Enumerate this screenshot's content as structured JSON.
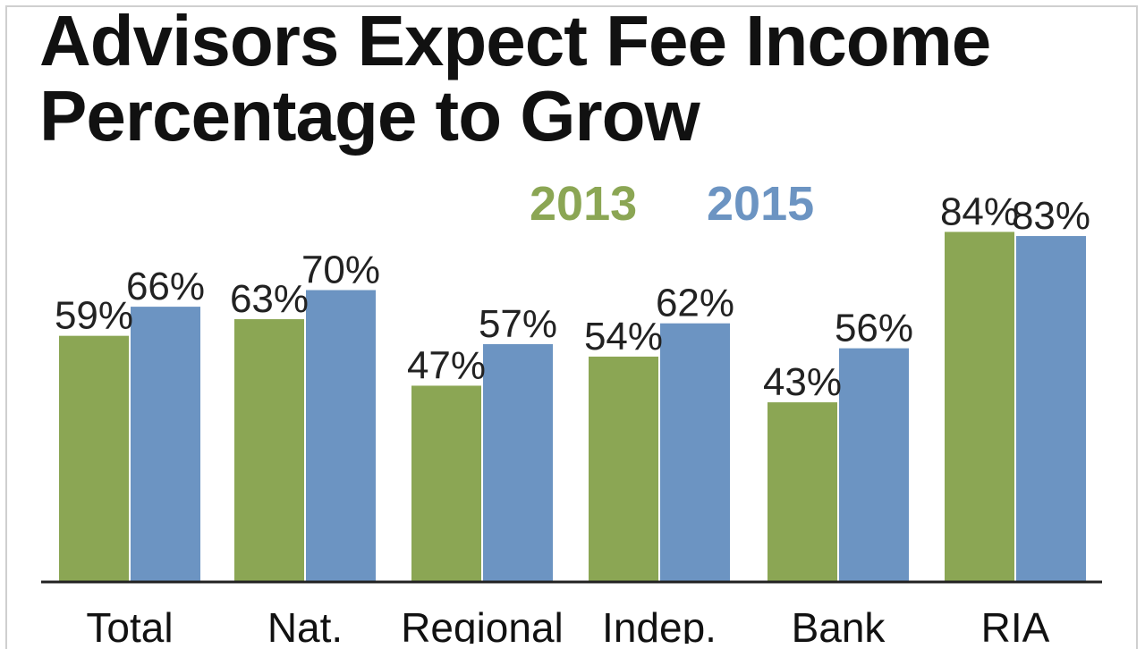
{
  "title_lines": [
    "Advisors Expect Fee Income",
    "Percentage to Grow"
  ],
  "colors": {
    "green": "#8ba654",
    "blue": "#6c94c2",
    "axis": "#222222"
  },
  "chart_data": {
    "type": "bar",
    "title": "Advisors Expect Fee Income Percentage to Grow",
    "categories": [
      "Total",
      "Nat.",
      "Regional",
      "Indep.",
      "Bank",
      "RIA"
    ],
    "series": [
      {
        "name": "2013",
        "values": [
          59,
          63,
          47,
          54,
          43,
          84
        ]
      },
      {
        "name": "2015",
        "values": [
          66,
          70,
          57,
          62,
          56,
          83
        ]
      }
    ],
    "value_labels": [
      [
        "59%",
        "63%",
        "47%",
        "54%",
        "43%",
        "84%"
      ],
      [
        "66%",
        "70%",
        "57%",
        "62%",
        "56%",
        "83%"
      ]
    ],
    "xlabel": "",
    "ylabel": "",
    "ylim": [
      0,
      100
    ],
    "grid": false,
    "legend_position": "top-center"
  }
}
